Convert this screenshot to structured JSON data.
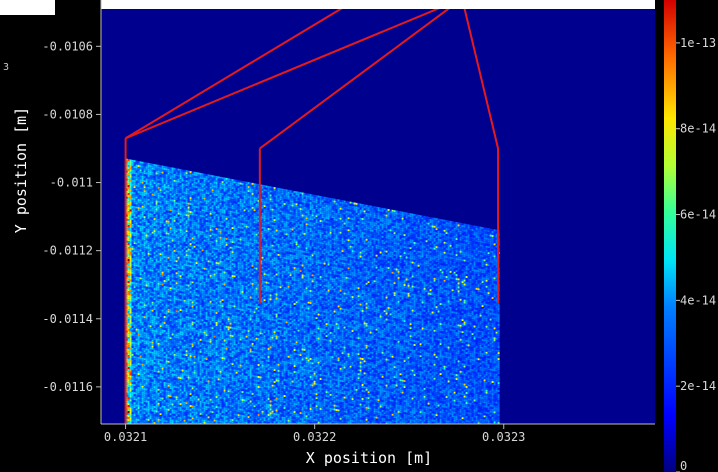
{
  "chart_data": {
    "type": "heatmap",
    "xlabel": "X position [m]",
    "ylabel": "Y position [m]",
    "y_offset_text": "3",
    "xlim": [
      0.032087,
      0.03238
    ],
    "ylim": [
      -0.011709,
      -0.010464
    ],
    "x_ticks": [
      0.0321,
      0.0322,
      0.0323
    ],
    "x_tick_labels": [
      "0.0321",
      "0.0322",
      "0.0323"
    ],
    "y_ticks": [
      -0.0106,
      -0.0108,
      -0.011,
      -0.0112,
      -0.0114,
      -0.0116
    ],
    "y_tick_labels": [
      "-0.0106",
      "-0.0108",
      "-0.011",
      "-0.0112",
      "-0.0114",
      "-0.0116"
    ],
    "colorbar": {
      "min": 0,
      "max": 1.1e-13,
      "ticks": [
        0,
        2e-14,
        4e-14,
        6e-14,
        8e-14,
        1e-13
      ],
      "tick_labels": [
        "0",
        "2e-14",
        "4e-14",
        "6e-14",
        "8e-14",
        "1e-13"
      ]
    },
    "colors": {
      "background": "#000000",
      "plot_background": "#00008f",
      "annotation": "#e41a1c"
    },
    "deposit_region": {
      "x_start": 0.0321,
      "x_end": 0.032297,
      "top_y_at_x_start": -0.01093,
      "top_y_at_x_end": -0.01114,
      "bottom_y": -0.011709,
      "edge_intensity": 0.55,
      "interior_intensity": 0.2,
      "far_intensity": 0.12
    },
    "annotation_lines": [
      {
        "x": 0.0321,
        "y_top": -0.01087,
        "y_bottom": -0.011709
      },
      {
        "x": 0.032171,
        "y_top": -0.0109,
        "y_bottom": -0.011355
      },
      {
        "x": 0.032297,
        "y_top": -0.0109,
        "y_bottom": -0.011355
      }
    ],
    "annotation_source": {
      "x": 0.032278,
      "y": -0.01046
    }
  }
}
